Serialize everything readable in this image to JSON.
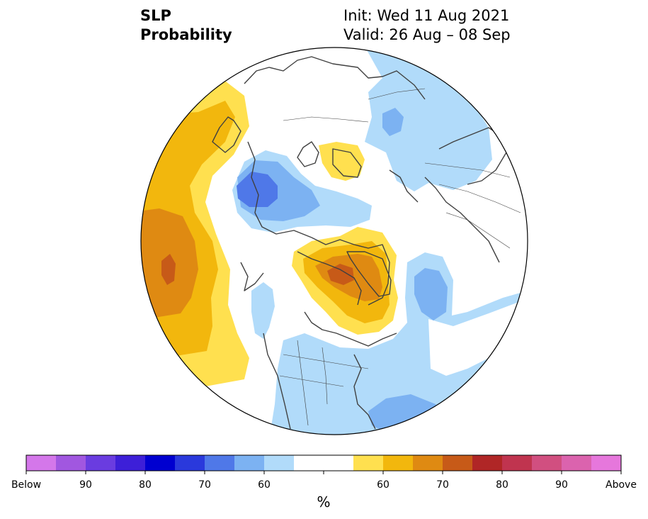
{
  "title": {
    "left_line1": "SLP",
    "left_line2": "Probability",
    "right_line1": "Init: Wed 11 Aug 2021",
    "right_line2": "Valid: 26 Aug – 08 Sep"
  },
  "colorbar": {
    "colors": [
      "#d477ea",
      "#a157e0",
      "#6a3ce0",
      "#3d1fd8",
      "#0000d0",
      "#2a39dc",
      "#4f78e8",
      "#7cb2f2",
      "#b1dbfa",
      "#ffffff",
      "#ffffff",
      "#ffe04f",
      "#f2b70d",
      "#df8a12",
      "#c75a18",
      "#b02626",
      "#c0344f",
      "#d14f80",
      "#db63ae",
      "#e677dc"
    ],
    "tick_labels": [
      "Below",
      "90",
      "80",
      "70",
      "60",
      "",
      "",
      "60",
      "70",
      "80",
      "90",
      "Above"
    ],
    "unit": "%"
  },
  "map_colors": {
    "light_blue": "#b1dbfa",
    "mid_blue": "#7cb2f2",
    "blue": "#4f78e8",
    "light_yellow": "#ffe04f",
    "yellow": "#f2b70d",
    "orange": "#df8a12",
    "dark_orange": "#c75a18",
    "coast": "#404040"
  }
}
